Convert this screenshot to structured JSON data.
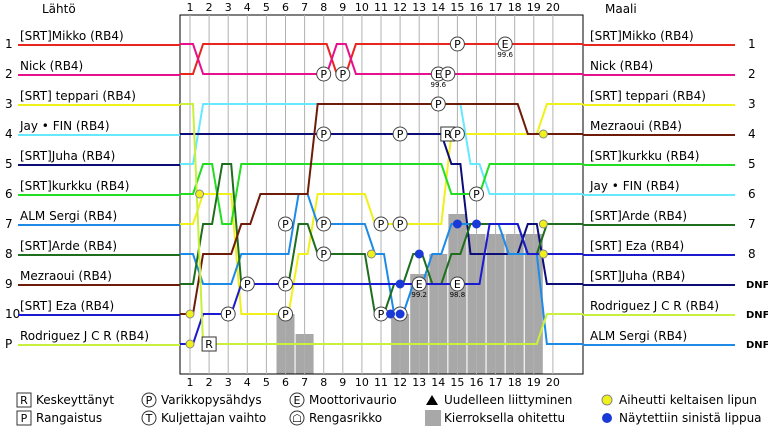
{
  "header": {
    "start_label": "Lähtö",
    "finish_label": "Maali"
  },
  "laps": [
    "1",
    "2",
    "3",
    "4",
    "5",
    "6",
    "7",
    "8",
    "9",
    "10",
    "11",
    "12",
    "13",
    "14",
    "15",
    "16",
    "17",
    "18",
    "19",
    "20"
  ],
  "positions": [
    "1",
    "2",
    "3",
    "4",
    "5",
    "6",
    "7",
    "8",
    "9",
    "10",
    "P"
  ],
  "start_drivers": [
    "[SRT]Mikko (RB4)",
    "Nick (RB4)",
    "[SRT] teppari (RB4)",
    "Jay • FIN (RB4)",
    "[SRT]Juha (RB4)",
    "[SRT]kurkku (RB4)",
    "ALM Sergi (RB4)",
    "[SRT]Arde (RB4)",
    "Mezraoui (RB4)",
    "[SRT] Eza (RB4)",
    "Rodriguez J C R (RB4)"
  ],
  "finish_drivers": [
    "[SRT]Mikko (RB4)",
    "Nick (RB4)",
    "[SRT] teppari (RB4)",
    "Mezraoui (RB4)",
    "[SRT]kurkku (RB4)",
    "Jay • FIN (RB4)",
    "[SRT]Arde (RB4)",
    "[SRT] Eza (RB4)",
    "[SRT]Juha (RB4)",
    "Rodriguez J C R (RB4)",
    "ALM Sergi (RB4)"
  ],
  "finish_status": [
    "1",
    "2",
    "3",
    "4",
    "5",
    "6",
    "7",
    "8",
    "DNF",
    "DNF",
    "DNF"
  ],
  "colors": [
    "#e8251f",
    "#e8108c",
    "#f0f01a",
    "#1a1ad0",
    "#0d0d7a",
    "#22dd22",
    "#66e8ff",
    "#1e6e1e",
    "#6e1b0a",
    "#1e8ae8",
    "#c8f03c"
  ],
  "driver_color_index": {
    "[SRT]Mikko (RB4)": 0,
    "Nick (RB4)": 1,
    "[SRT] teppari (RB4)": 2,
    "Jay • FIN (RB4)": 6,
    "[SRT]Juha (RB4)": 4,
    "[SRT]kurkku (RB4)": 5,
    "ALM Sergi (RB4)": 9,
    "[SRT]Arde (RB4)": 7,
    "Mezraoui (RB4)": 8,
    "[SRT] Eza (RB4)": 3,
    "Rodriguez J C R (RB4)": 10
  },
  "overtaken_per_lap": [
    0,
    0,
    0,
    0,
    0,
    3,
    2,
    0,
    0,
    0,
    0,
    3,
    5,
    6,
    8,
    7,
    7,
    7,
    7,
    0
  ],
  "traces": [
    {
      "driver": "[SRT]Mikko (RB4)",
      "pos": [
        2,
        1,
        1,
        1,
        1,
        1,
        1,
        1,
        2,
        1,
        1,
        1,
        1,
        1,
        1,
        1,
        1,
        1,
        1,
        1
      ]
    },
    {
      "driver": "Nick (RB4)",
      "pos": [
        1,
        2,
        2,
        2,
        2,
        2,
        2,
        2,
        1,
        2,
        2,
        2,
        2,
        2,
        2,
        2,
        2,
        2,
        2,
        2
      ]
    },
    {
      "driver": "[SRT] teppari (RB4)",
      "pos": [
        7,
        6,
        6,
        10,
        10,
        10,
        8,
        6,
        6,
        6,
        7,
        7,
        7,
        7,
        4,
        4,
        4,
        4,
        4,
        3
      ]
    },
    {
      "driver": "Jay • FIN (RB4)",
      "pos": [
        5,
        3,
        3,
        3,
        3,
        3,
        3,
        3,
        3,
        3,
        3,
        3,
        3,
        3,
        3,
        5,
        6,
        6,
        6,
        6
      ]
    },
    {
      "driver": "[SRT]Juha (RB4)",
      "pos": [
        4,
        4,
        4,
        4,
        4,
        4,
        4,
        4,
        4,
        4,
        4,
        4,
        4,
        4,
        5,
        8,
        8,
        8,
        7,
        9
      ]
    },
    {
      "driver": "[SRT]kurkku (RB4)",
      "pos": [
        6,
        5,
        7,
        5,
        5,
        5,
        5,
        5,
        5,
        5,
        5,
        5,
        5,
        5,
        6,
        6,
        5,
        5,
        5,
        5
      ]
    },
    {
      "driver": "ALM Sergi (RB4)",
      "pos": [
        8,
        9,
        9,
        8,
        8,
        8,
        6,
        7,
        7,
        7,
        8,
        10,
        9,
        8,
        7,
        7,
        7,
        8,
        8,
        11
      ]
    },
    {
      "driver": "[SRT]Arde (RB4)",
      "pos": [
        9,
        7,
        5,
        9,
        9,
        9,
        7,
        8,
        8,
        8,
        10,
        9,
        8,
        9,
        8,
        7,
        7,
        7,
        8,
        7
      ]
    },
    {
      "driver": "Mezraoui (RB4)",
      "pos": [
        10,
        8,
        8,
        7,
        6,
        6,
        6,
        3,
        3,
        3,
        3,
        3,
        3,
        3,
        3,
        3,
        3,
        3,
        4,
        4
      ]
    },
    {
      "driver": "[SRT] Eza (RB4)",
      "pos": [
        11,
        10,
        10,
        9,
        9,
        9,
        9,
        9,
        9,
        9,
        9,
        9,
        9,
        9,
        9,
        9,
        7,
        7,
        8,
        8
      ]
    },
    {
      "driver": "Rodriguez J C R (RB4)",
      "pos": [
        3,
        11,
        11,
        11,
        11,
        11,
        11,
        11,
        11,
        11,
        11,
        11,
        11,
        11,
        11,
        11,
        11,
        11,
        11,
        10
      ]
    }
  ],
  "events": [
    {
      "type": "P",
      "lap": 15,
      "pos": 1
    },
    {
      "type": "E",
      "lap": 17.5,
      "pos": 1,
      "note": "99.6"
    },
    {
      "type": "P",
      "lap": 8,
      "pos": 2
    },
    {
      "type": "P",
      "lap": 9,
      "pos": 2
    },
    {
      "type": "E",
      "lap": 14,
      "pos": 2,
      "note": "99.6"
    },
    {
      "type": "P",
      "lap": 14.5,
      "pos": 2
    },
    {
      "type": "P",
      "lap": 14,
      "pos": 3
    },
    {
      "type": "P",
      "lap": 8,
      "pos": 4
    },
    {
      "type": "P",
      "lap": 12,
      "pos": 4
    },
    {
      "type": "R",
      "lap": 14.5,
      "pos": 4
    },
    {
      "type": "P",
      "lap": 15,
      "pos": 4
    },
    {
      "type": "P",
      "lap": 16,
      "pos": 6
    },
    {
      "type": "P",
      "lap": 6,
      "pos": 7
    },
    {
      "type": "P",
      "lap": 8,
      "pos": 7
    },
    {
      "type": "P",
      "lap": 11,
      "pos": 7
    },
    {
      "type": "P",
      "lap": 12,
      "pos": 7
    },
    {
      "type": "P",
      "lap": 8,
      "pos": 8
    },
    {
      "type": "P",
      "lap": 4,
      "pos": 9
    },
    {
      "type": "P",
      "lap": 6,
      "pos": 9
    },
    {
      "type": "E",
      "lap": 13,
      "pos": 9,
      "note": "99.2"
    },
    {
      "type": "E",
      "lap": 15,
      "pos": 9,
      "note": "98.8"
    },
    {
      "type": "P",
      "lap": 3,
      "pos": 10
    },
    {
      "type": "P",
      "lap": 6,
      "pos": 10
    },
    {
      "type": "P",
      "lap": 11,
      "pos": 10
    },
    {
      "type": "P",
      "lap": 12,
      "pos": 10
    },
    {
      "type": "R",
      "lap": 2,
      "pos": 11
    }
  ],
  "blue_flags": [
    [
      13,
      8
    ],
    [
      15,
      7
    ],
    [
      16,
      7
    ],
    [
      12,
      9
    ],
    [
      12,
      10
    ],
    [
      11.5,
      10
    ]
  ],
  "yellow_flags": [
    [
      1.5,
      6
    ],
    [
      1,
      10
    ],
    [
      1,
      11
    ],
    [
      10.5,
      8
    ],
    [
      19.5,
      4
    ],
    [
      19.5,
      7
    ],
    [
      19.5,
      8
    ]
  ],
  "legend": [
    {
      "icon": "R",
      "label": "Keskeyttänyt"
    },
    {
      "icon": "P",
      "label": "Rangaistus"
    },
    {
      "icon": "Pc",
      "label": "Varikkopysähdys"
    },
    {
      "icon": "Tc",
      "label": "Kuljettajan vaihto"
    },
    {
      "icon": "E",
      "label": "Moottorivaurio"
    },
    {
      "icon": "H",
      "label": "Rengasrikko"
    },
    {
      "icon": "tri",
      "label": "Uudelleen liittyminen"
    },
    {
      "icon": "gray",
      "label": "Kierroksella ohitettu"
    },
    {
      "icon": "yellow",
      "label": "Aiheutti keltaisen lipun"
    },
    {
      "icon": "blue",
      "label": "Näytettiin sinistä lippua"
    }
  ]
}
